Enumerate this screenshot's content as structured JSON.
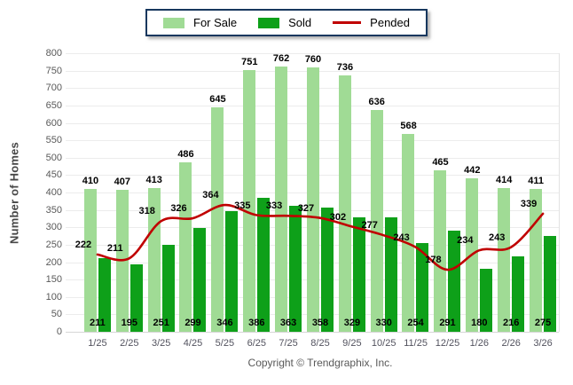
{
  "chart_data": {
    "type": "bar",
    "title": "",
    "categories": [
      "1/25",
      "2/25",
      "3/25",
      "4/25",
      "5/25",
      "6/25",
      "7/25",
      "8/25",
      "9/25",
      "10/25",
      "11/25",
      "12/25",
      "1/26",
      "2/26",
      "3/26"
    ],
    "series": [
      {
        "name": "For Sale",
        "type": "bar",
        "color": "#A0DB95",
        "values": [
          410,
          407,
          413,
          486,
          645,
          751,
          762,
          760,
          736,
          636,
          568,
          465,
          442,
          414,
          411
        ]
      },
      {
        "name": "Sold",
        "type": "bar",
        "color": "#0EA019",
        "values": [
          211,
          195,
          251,
          299,
          346,
          386,
          363,
          358,
          329,
          330,
          254,
          291,
          180,
          216,
          275
        ]
      },
      {
        "name": "Pended",
        "type": "line",
        "color": "#C00000",
        "values": [
          222,
          211,
          318,
          326,
          364,
          335,
          333,
          327,
          302,
          277,
          243,
          178,
          234,
          243,
          339
        ]
      }
    ],
    "xlabel": "",
    "ylabel": "Number of Homes",
    "ylim": [
      0,
      800
    ],
    "ytick_step": 50,
    "grid": true,
    "legend_position": "top-center",
    "styles": {
      "gridline_color": "#ECECEC",
      "axis_line_color": "#D6D6D6",
      "tick_text_color": "#595959",
      "legend_border_color": "#17375E",
      "value_label_color": "#000000"
    }
  },
  "footer": {
    "copyright": "Copyright © Trendgraphix, Inc."
  }
}
